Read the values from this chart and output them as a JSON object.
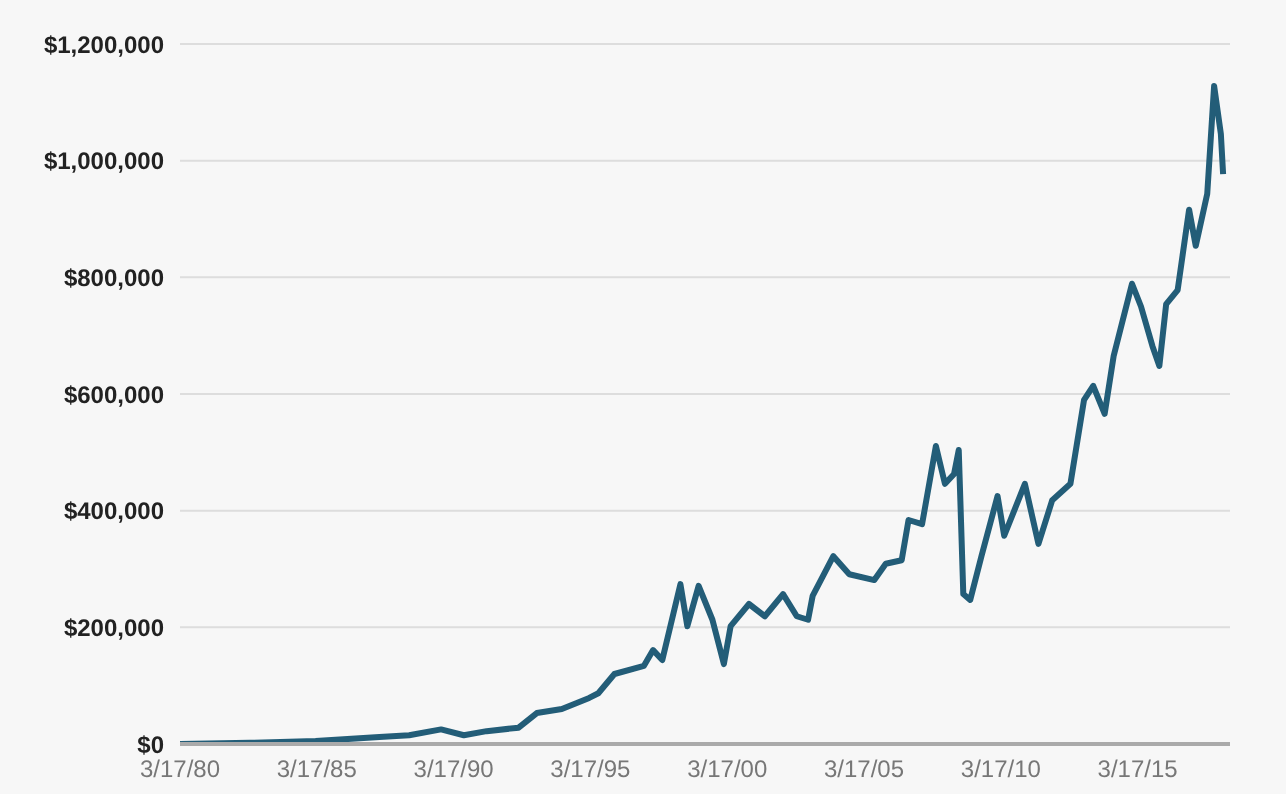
{
  "chart_data": {
    "type": "line",
    "x": [
      "1980-03-17",
      "1982-10",
      "1985-03",
      "1987-07",
      "1988-08",
      "1989-10",
      "1990-08",
      "1991-06",
      "1992-08",
      "1993-04",
      "1994-03",
      "1995-03",
      "1995-07",
      "1996-02",
      "1997-03",
      "1997-07",
      "1997-11",
      "1998-07",
      "1998-10",
      "1999-03",
      "1999-09",
      "2000-02",
      "2000-05",
      "2001-01",
      "2001-08",
      "2002-04",
      "2002-10",
      "2003-03",
      "2003-05",
      "2004-02",
      "2004-09",
      "2005-08",
      "2006-01",
      "2006-08",
      "2006-11",
      "2007-05",
      "2007-11",
      "2008-03",
      "2008-07",
      "2008-09",
      "2008-10",
      "2008-11",
      "2009-02",
      "2009-07",
      "2010-02",
      "2010-05",
      "2011-02",
      "2011-08",
      "2012-02",
      "2012-10",
      "2013-04",
      "2013-08",
      "2014-01",
      "2014-05",
      "2015-01",
      "2015-05",
      "2015-10",
      "2016-01",
      "2016-04",
      "2016-09",
      "2017-02",
      "2017-05",
      "2017-10",
      "2018-01",
      "2018-04",
      "2018-05"
    ],
    "series": [
      {
        "color": "#235d78",
        "values": [
          0,
          2000,
          5000,
          12000,
          15000,
          25000,
          15000,
          22000,
          28000,
          53000,
          60000,
          79000,
          87000,
          120000,
          134000,
          161000,
          144000,
          274000,
          202000,
          271000,
          213000,
          137000,
          202000,
          240000,
          219000,
          257000,
          219000,
          213000,
          254000,
          322000,
          291000,
          281000,
          309000,
          315000,
          384000,
          377000,
          511000,
          446000,
          463000,
          504000,
          384000,
          257000,
          247000,
          322000,
          425000,
          357000,
          446000,
          343000,
          418000,
          446000,
          590000,
          614000,
          566000,
          665000,
          789000,
          750000,
          682000,
          648000,
          754000,
          778000,
          916000,
          854000,
          943000,
          1128000,
          1046000,
          977000
        ]
      }
    ],
    "xlim": [
      "1980-03-17",
      "2018-08"
    ],
    "xticks": [
      {
        "value": "1980-03-17",
        "label": "3/17/80"
      },
      {
        "value": "1985-03-17",
        "label": "3/17/85"
      },
      {
        "value": "1990-03-17",
        "label": "3/17/90"
      },
      {
        "value": "1995-03-17",
        "label": "3/17/95"
      },
      {
        "value": "2000-03-17",
        "label": "3/17/00"
      },
      {
        "value": "2005-03-17",
        "label": "3/17/05"
      },
      {
        "value": "2010-03-17",
        "label": "3/17/10"
      },
      {
        "value": "2015-03-17",
        "label": "3/17/15"
      }
    ],
    "ylim": [
      0,
      1200000
    ],
    "yticks": [
      {
        "value": 0,
        "label": "$0"
      },
      {
        "value": 200000,
        "label": "$200,000"
      },
      {
        "value": 400000,
        "label": "$400,000"
      },
      {
        "value": 600000,
        "label": "$600,000"
      },
      {
        "value": 800000,
        "label": "$800,000"
      },
      {
        "value": 1000000,
        "label": "$1,000,000"
      },
      {
        "value": 1200000,
        "label": "$1,200,000"
      }
    ],
    "grid": "y",
    "legend": false,
    "marker": "none",
    "line_style": "solid"
  }
}
